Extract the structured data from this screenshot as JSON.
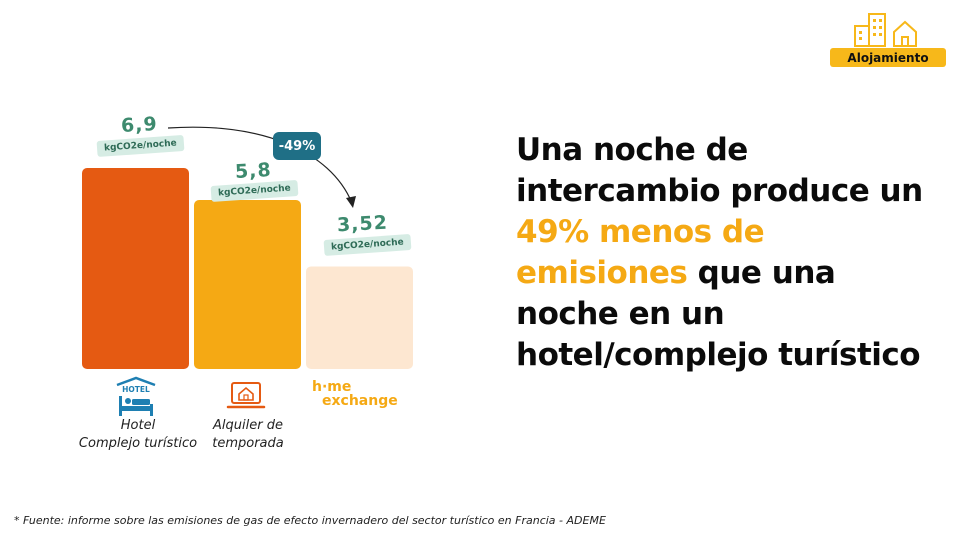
{
  "badge": {
    "label": "Alojamiento",
    "icon": "buildings-icon"
  },
  "headline": {
    "part1": "Una noche de intercambio produce un",
    "highlight": "49% menos de emisiones",
    "part2": "que una noche en un hotel/complejo turístico"
  },
  "chart_data": {
    "type": "bar",
    "unit": "kgCO2e/noche",
    "value_labels": [
      "6,9",
      "5,8",
      "3,52"
    ],
    "values": [
      6.9,
      5.8,
      3.52
    ],
    "colors": [
      "#e55a12",
      "#f5a914",
      "#fde7d1"
    ],
    "ylim": [
      0,
      6.9
    ],
    "annotation": "-49%",
    "categories": [
      {
        "line1": "Hotel",
        "line2": "Complejo turístico",
        "icon": "hotel-bed-icon",
        "icon_text": "HOTEL"
      },
      {
        "line1": "Alquiler de",
        "line2": "temporada",
        "icon": "laptop-house-icon"
      },
      {
        "logo_top": "h·me",
        "logo_bottom": "exchange",
        "icon": "homeexchange-logo"
      }
    ]
  },
  "footnote": "* Fuente: informe sobre las emisiones de gas de efecto invernadero del sector turístico en Francia - ADEME"
}
